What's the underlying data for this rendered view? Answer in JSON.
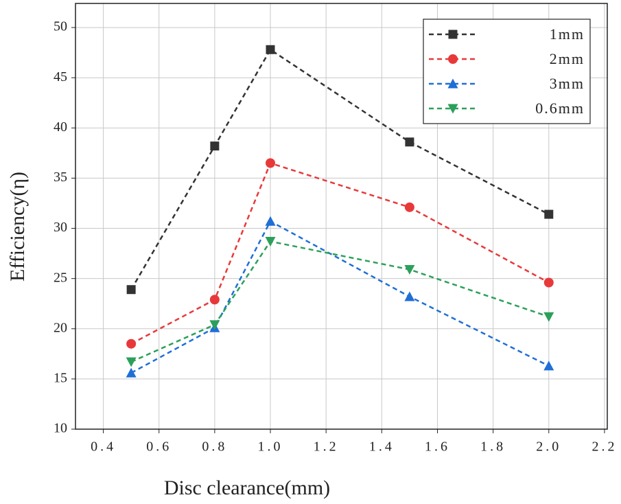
{
  "chart_data": {
    "type": "line",
    "x_label": "Disc clearance(mm)",
    "y_label": "Efficiency(η)",
    "x": [
      0.5,
      0.8,
      1.0,
      1.5,
      2.0
    ],
    "series": [
      {
        "name": "1mm",
        "color": "#333333",
        "marker": "square",
        "values": [
          23.9,
          38.2,
          47.8,
          38.6,
          31.4
        ]
      },
      {
        "name": "2mm",
        "color": "#e8393a",
        "marker": "circle",
        "values": [
          18.5,
          22.9,
          36.5,
          32.1,
          24.6
        ]
      },
      {
        "name": "3mm",
        "color": "#1f6fd6",
        "marker": "triangle-up",
        "values": [
          15.6,
          20.1,
          30.7,
          23.2,
          16.3
        ]
      },
      {
        "name": "0.6mm",
        "color": "#2ca05a",
        "marker": "triangle-down",
        "values": [
          16.7,
          20.4,
          28.7,
          25.9,
          21.2
        ]
      }
    ],
    "xlim": [
      0.3,
      2.21
    ],
    "ylim": [
      10,
      52.4
    ],
    "xticks": [
      0.4,
      0.6,
      0.8,
      {
        "value": 1.0,
        "label": "1.0"
      },
      1.2,
      1.4,
      1.6,
      1.8,
      {
        "value": 2.0,
        "label": "2.0"
      },
      2.2
    ],
    "yticks": [
      10,
      15,
      20,
      25,
      30,
      35,
      40,
      45,
      50
    ],
    "grid": true,
    "legend": "upper right",
    "line_style": "dashed"
  }
}
